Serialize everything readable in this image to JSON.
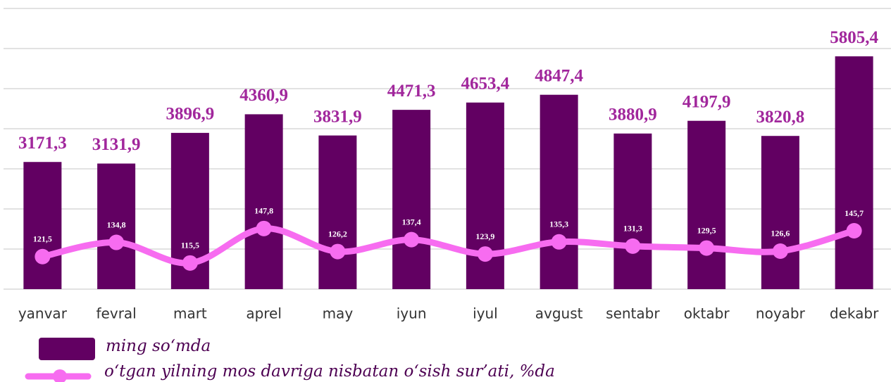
{
  "chart_data": {
    "type": "bar_line",
    "categories": [
      "yanvar",
      "fevral",
      "mart",
      "aprel",
      "may",
      "iyun",
      "iyul",
      "avgust",
      "sentabr",
      "oktabr",
      "noyabr",
      "dekabr"
    ],
    "series": [
      {
        "name": "ming so‘mda",
        "color": "#620062",
        "type": "bar",
        "values": [
          3171.3,
          3131.9,
          3896.9,
          4360.9,
          3831.9,
          4471.3,
          4653.4,
          4847.4,
          3880.9,
          4197.9,
          3820.8,
          5805.4
        ],
        "value_labels": [
          "3171,3",
          "3131,9",
          "3896,9",
          "4360,9",
          "3831,9",
          "4471,3",
          "4653,4",
          "4847,4",
          "3880,9",
          "4197,9",
          "3820,8",
          "5805,4"
        ]
      },
      {
        "name": "o‘tgan yilning mos davriga nisbatan o‘sish sur’ati, %da",
        "color": "#f76cf0",
        "type": "line",
        "axis": "y2",
        "values": [
          121.5,
          134.8,
          115.5,
          147.8,
          126.2,
          137.4,
          123.9,
          135.3,
          131.3,
          129.5,
          126.6,
          145.7
        ],
        "value_labels": [
          "121,5",
          "134,8",
          "115,5",
          "147,8",
          "126,2",
          "137,4",
          "123,9",
          "135,3",
          "131,3",
          "129,5",
          "126,6",
          "145,7"
        ]
      }
    ],
    "ylim": [
      0,
      7000
    ],
    "yticks": [
      0,
      1000,
      2000,
      3000,
      4000,
      5000,
      6000,
      7000
    ],
    "y2lim": [
      91,
      354
    ],
    "grid": true
  }
}
